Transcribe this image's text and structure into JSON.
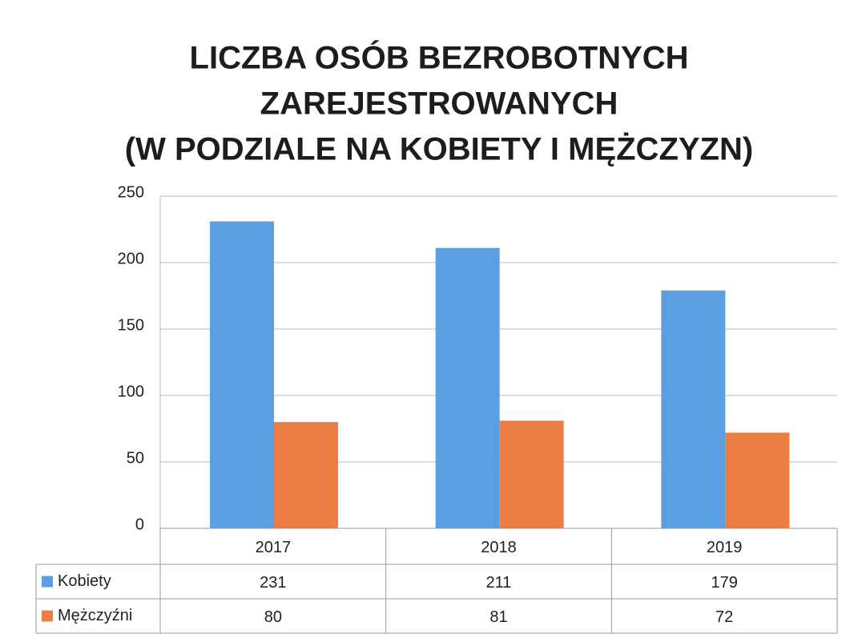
{
  "chart_data": {
    "type": "bar",
    "title": [
      "LICZBA OSÓB BEZROBOTNYCH",
      "ZAREJESTROWANYCH",
      "(W PODZIALE NA KOBIETY I MĘŻCZYZN)"
    ],
    "categories": [
      "2017",
      "2018",
      "2019"
    ],
    "series": [
      {
        "name": "Kobiety",
        "color": "#5b9fe2",
        "values": [
          231,
          211,
          179
        ]
      },
      {
        "name": "Mężczyźni",
        "color": "#ee7d45",
        "values": [
          80,
          81,
          72
        ]
      }
    ],
    "ylim": [
      0,
      250
    ],
    "yticks": [
      0,
      50,
      100,
      150,
      200,
      250
    ],
    "grid": true,
    "data_table": true
  }
}
